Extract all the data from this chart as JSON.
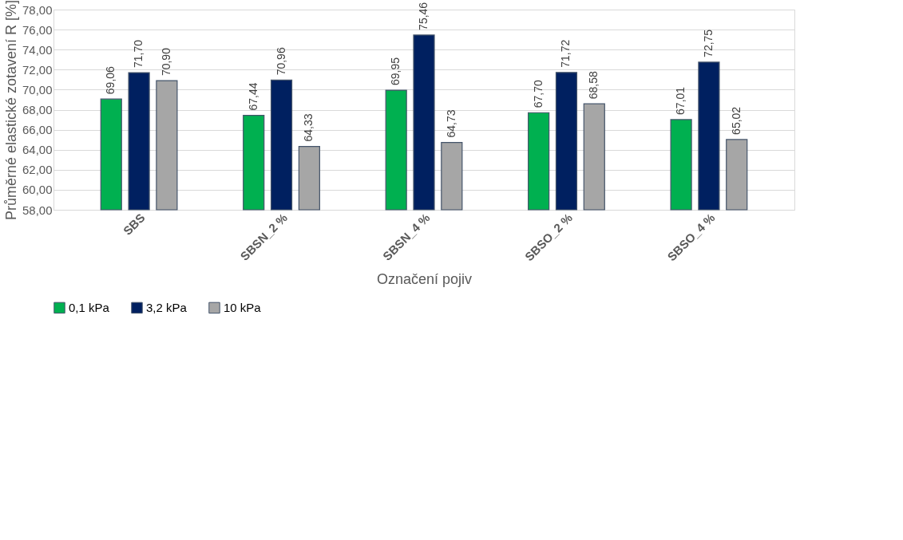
{
  "chart_data": {
    "type": "bar",
    "xlabel": "Označení pojiv",
    "ylabel": "Průměrné elastické zotavení R [%]",
    "categories": [
      "SBS",
      "SBSN_2 %",
      "SBSN_4 %",
      "SBSO_2 %",
      "SBSO_4 %"
    ],
    "series": [
      {
        "name": "0,1 kPa",
        "color": "#00b050",
        "values": [
          69.06,
          67.44,
          69.95,
          67.7,
          67.01
        ],
        "value_labels": [
          "69,06",
          "67,44",
          "69,95",
          "67,70",
          "67,01"
        ]
      },
      {
        "name": "3,2 kPa",
        "color": "#002060",
        "values": [
          71.7,
          70.96,
          75.46,
          71.72,
          72.75
        ],
        "value_labels": [
          "71,70",
          "70,96",
          "75,46",
          "71,72",
          "72,75"
        ]
      },
      {
        "name": "10 kPa",
        "color": "#a6a6a6",
        "values": [
          70.9,
          64.33,
          64.73,
          68.58,
          65.02
        ],
        "value_labels": [
          "70,90",
          "64,33",
          "64,73",
          "68,58",
          "65,02"
        ]
      }
    ],
    "ylim": [
      58,
      78
    ],
    "yticks": [
      {
        "value": 58,
        "label": "58,00"
      },
      {
        "value": 60,
        "label": "60,00"
      },
      {
        "value": 62,
        "label": "62,00"
      },
      {
        "value": 64,
        "label": "64,00"
      },
      {
        "value": 66,
        "label": "66,00"
      },
      {
        "value": 68,
        "label": "68,00"
      },
      {
        "value": 70,
        "label": "70,00"
      },
      {
        "value": 72,
        "label": "72,00"
      },
      {
        "value": 74,
        "label": "74,00"
      },
      {
        "value": 76,
        "label": "76,00"
      },
      {
        "value": 78,
        "label": "78,00"
      }
    ],
    "grid": "y",
    "legend": "bottom"
  }
}
